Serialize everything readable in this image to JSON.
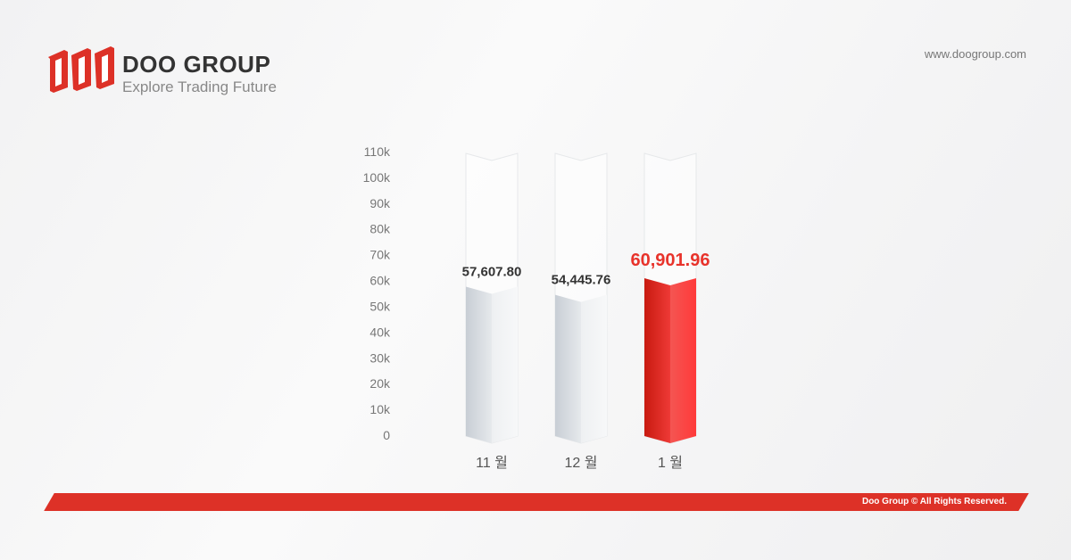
{
  "brand": {
    "name": "DOO GROUP",
    "tagline": "Explore Trading Future",
    "url": "www.doogroup.com",
    "footer": "Doo Group © All Rights Reserved."
  },
  "colors": {
    "accent": "#dd3127",
    "highlight_bar": "#ee3333",
    "bar": "#dfe3e7"
  },
  "chart_data": {
    "type": "bar",
    "categories": [
      "11 월",
      "12 월",
      "1 월"
    ],
    "values": [
      57607.8,
      54445.76,
      60901.96
    ],
    "data_labels": [
      "57,607.80",
      "54,445.76",
      "60,901.96"
    ],
    "highlight_index": 2,
    "ylim": [
      0,
      110000
    ],
    "yticks": [
      "0",
      "10k",
      "20k",
      "30k",
      "40k",
      "50k",
      "60k",
      "70k",
      "80k",
      "90k",
      "100k",
      "110k"
    ],
    "grid": false,
    "xlabel": "",
    "ylabel": "",
    "title": ""
  }
}
